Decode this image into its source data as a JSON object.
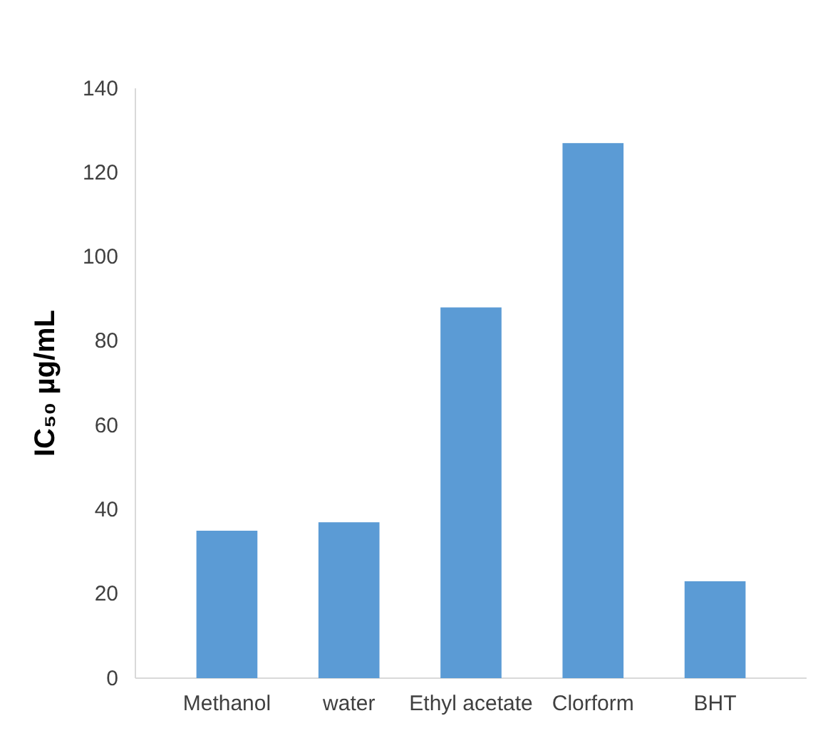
{
  "chart_data": {
    "type": "bar",
    "ylabel": "IC₅₀  µg/mL",
    "categories": [
      "Methanol",
      "water",
      "Ethyl acetate",
      "Clorform",
      "BHT"
    ],
    "values": [
      35,
      37,
      88,
      127,
      23
    ],
    "color": "#5b9bd5",
    "ylim": [
      0,
      140
    ],
    "yticks": [
      0,
      20,
      40,
      60,
      80,
      100,
      120,
      140
    ],
    "grid": false
  }
}
